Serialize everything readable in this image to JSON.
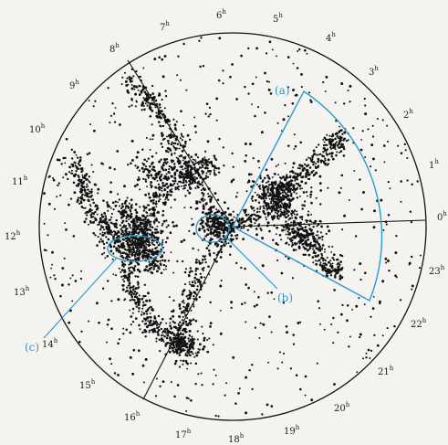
{
  "diagram": {
    "hours": [
      {
        "num": "0",
        "sup": "h"
      },
      {
        "num": "1",
        "sup": "h"
      },
      {
        "num": "2",
        "sup": "h"
      },
      {
        "num": "3",
        "sup": "h"
      },
      {
        "num": "4",
        "sup": "h"
      },
      {
        "num": "5",
        "sup": "h"
      },
      {
        "num": "6",
        "sup": "h"
      },
      {
        "num": "7",
        "sup": "h"
      },
      {
        "num": "8",
        "sup": "h"
      },
      {
        "num": "9",
        "sup": "h"
      },
      {
        "num": "10",
        "sup": "h"
      },
      {
        "num": "11",
        "sup": "h"
      },
      {
        "num": "12",
        "sup": "h"
      },
      {
        "num": "13",
        "sup": "h"
      },
      {
        "num": "14",
        "sup": "h"
      },
      {
        "num": "15",
        "sup": "h"
      },
      {
        "num": "16",
        "sup": "h"
      },
      {
        "num": "17",
        "sup": "h"
      },
      {
        "num": "18",
        "sup": "h"
      },
      {
        "num": "19",
        "sup": "h"
      },
      {
        "num": "20",
        "sup": "h"
      },
      {
        "num": "21",
        "sup": "h"
      },
      {
        "num": "22",
        "sup": "h"
      },
      {
        "num": "23",
        "sup": "h"
      }
    ],
    "callouts": [
      {
        "label": "(a)"
      },
      {
        "label": "(b)"
      },
      {
        "label": "(c)"
      }
    ],
    "colors": {
      "ink": "#111111",
      "accent": "#2a9bd1",
      "paper": "#f4f3ef"
    }
  }
}
